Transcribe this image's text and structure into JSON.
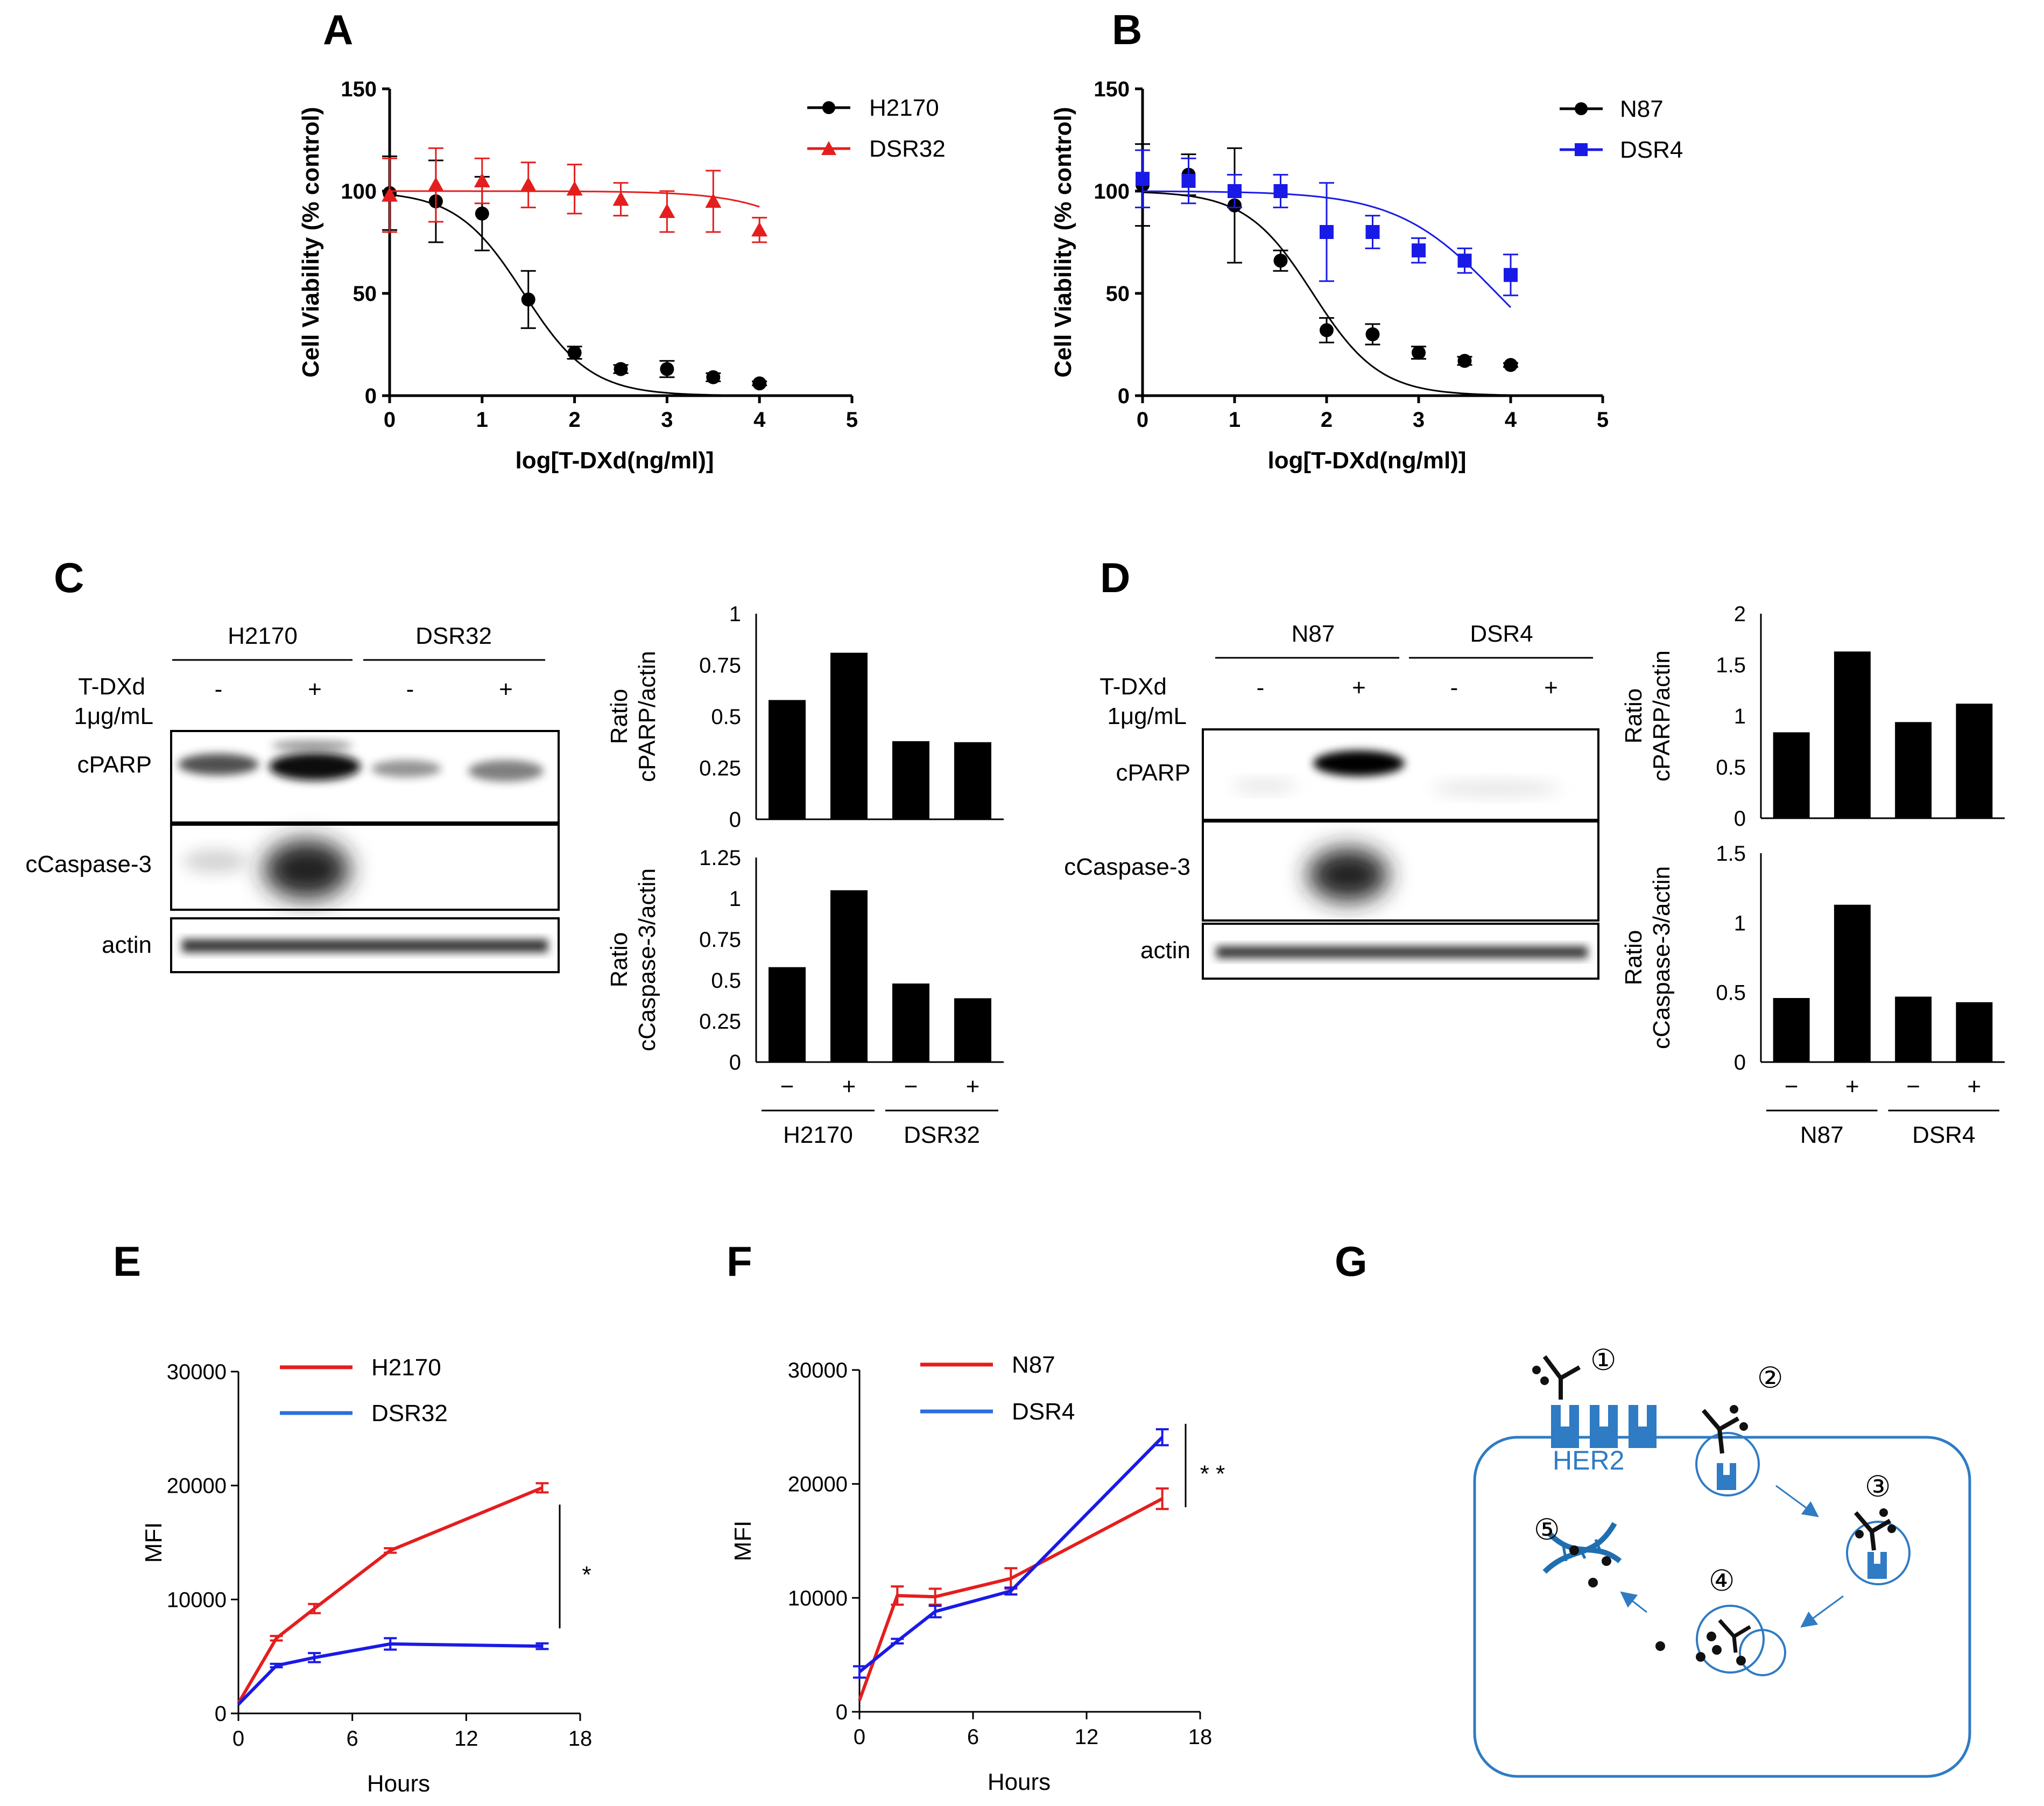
{
  "panel_labels": {
    "A": "A",
    "B": "B",
    "C": "C",
    "D": "D",
    "E": "E",
    "F": "F",
    "G": "G"
  },
  "colors": {
    "black": "#000000",
    "red": "#e41e1e",
    "blue": "#1a1ae6",
    "cell_blue": "#2f7bc4"
  },
  "chart_data": [
    {
      "id": "A",
      "type": "scatter",
      "xlabel": "log[T-DXd(ng/ml)]",
      "ylabel": "Cell Viability (% control)",
      "xlim": [
        0,
        5
      ],
      "ylim": [
        0,
        150
      ],
      "xticks": [
        "0",
        "1",
        "2",
        "3",
        "4",
        "5"
      ],
      "yticks": [
        "0",
        "50",
        "100",
        "150"
      ],
      "series": [
        {
          "name": "H2170",
          "color": "#000000",
          "marker": "circle",
          "x": [
            0,
            0.5,
            1,
            1.5,
            2,
            2.5,
            3,
            3.5,
            4
          ],
          "y": [
            99,
            95,
            89,
            47,
            21,
            13,
            13,
            9,
            6
          ],
          "err": [
            18,
            20,
            18,
            14,
            3,
            2,
            4,
            2,
            1
          ],
          "fit": {
            "top": 100,
            "bottom": 0,
            "logec50": 1.45,
            "hill": 1.2
          }
        },
        {
          "name": "DSR32",
          "color": "#e41e1e",
          "marker": "triangle",
          "x": [
            0,
            0.5,
            1,
            1.5,
            2,
            2.5,
            3,
            3.5,
            4
          ],
          "y": [
            98,
            103,
            105,
            103,
            101,
            96,
            90,
            95,
            81
          ],
          "err": [
            18,
            18,
            11,
            11,
            12,
            8,
            10,
            15,
            6
          ],
          "fit": {
            "top": 100,
            "bottom": 0,
            "logec50": 5.2,
            "hill": 0.9
          }
        }
      ]
    },
    {
      "id": "B",
      "type": "scatter",
      "xlabel": "log[T-DXd(ng/ml)]",
      "ylabel": "Cell Viability (% control)",
      "xlim": [
        0,
        5
      ],
      "ylim": [
        0,
        150
      ],
      "xticks": [
        "0",
        "1",
        "2",
        "3",
        "4",
        "5"
      ],
      "yticks": [
        "0",
        "50",
        "100",
        "150"
      ],
      "series": [
        {
          "name": "N87",
          "color": "#000000",
          "marker": "circle",
          "x": [
            0,
            0.5,
            1,
            1.5,
            2,
            2.5,
            3,
            3.5,
            4
          ],
          "y": [
            103,
            108,
            93,
            66,
            32,
            30,
            21,
            17,
            15
          ],
          "err": [
            20,
            10,
            28,
            5,
            6,
            5,
            3,
            2,
            1
          ],
          "fit": {
            "top": 100,
            "bottom": 0,
            "logec50": 1.85,
            "hill": 1.2
          }
        },
        {
          "name": "DSR4",
          "color": "#1a1ae6",
          "marker": "square",
          "x": [
            0,
            0.5,
            1,
            1.5,
            2,
            2.5,
            3,
            3.5,
            4
          ],
          "y": [
            106,
            105,
            100,
            100,
            80,
            80,
            71,
            66,
            59
          ],
          "err": [
            14,
            11,
            8,
            8,
            24,
            8,
            6,
            6,
            10
          ],
          "fit": {
            "top": 100,
            "bottom": 0,
            "logec50": 3.85,
            "hill": 0.8
          }
        }
      ]
    },
    {
      "id": "C-cparp",
      "type": "bar",
      "ylabel": "Ratio cPARP/actin",
      "ylabel_lines": [
        "Ratio",
        "cPARP/actin"
      ],
      "categories": [
        "−",
        "+",
        "−",
        "+"
      ],
      "values": [
        0.58,
        0.81,
        0.38,
        0.375
      ],
      "ylim": [
        0,
        1
      ],
      "yticks": [
        "0",
        "0.25",
        "0.5",
        "0.75",
        "1"
      ]
    },
    {
      "id": "C-ccasp",
      "type": "bar",
      "ylabel": "Ratio cCaspase-3/actin",
      "ylabel_lines": [
        "Ratio",
        "cCaspase-3/actin"
      ],
      "categories": [
        "−",
        "+",
        "−",
        "+"
      ],
      "values": [
        0.58,
        1.05,
        0.48,
        0.39
      ],
      "ylim": [
        0,
        1.25
      ],
      "yticks": [
        "0",
        "0.25",
        "0.5",
        "0.75",
        "1",
        "1.25"
      ],
      "groups": [
        "H2170",
        "DSR32"
      ]
    },
    {
      "id": "D-cparp",
      "type": "bar",
      "ylabel": "Ratio cPARP/actin",
      "ylabel_lines": [
        "Ratio",
        "cPARP/actin"
      ],
      "categories": [
        "−",
        "+",
        "−",
        "+"
      ],
      "values": [
        0.84,
        1.63,
        0.94,
        1.12
      ],
      "ylim": [
        0,
        2
      ],
      "yticks": [
        "0",
        "0.5",
        "1",
        "1.5",
        "2"
      ]
    },
    {
      "id": "D-ccasp",
      "type": "bar",
      "ylabel": "Ratio cCaspase-3/actin",
      "ylabel_lines": [
        "Ratio",
        "cCaspase-3/actin"
      ],
      "categories": [
        "−",
        "+",
        "−",
        "+"
      ],
      "values": [
        0.46,
        1.13,
        0.47,
        0.43
      ],
      "ylim": [
        0,
        1.5
      ],
      "yticks": [
        "0",
        "0.5",
        "1",
        "1.5"
      ],
      "groups": [
        "N87",
        "DSR4"
      ]
    },
    {
      "id": "E",
      "type": "line",
      "xlabel": "Hours",
      "ylabel": "MFI",
      "xlim": [
        0,
        18
      ],
      "ylim": [
        0,
        30000
      ],
      "xticks": [
        "0",
        "6",
        "12",
        "18"
      ],
      "yticks": [
        "0",
        "10000",
        "20000",
        "30000"
      ],
      "annotation": "*",
      "series": [
        {
          "name": "H2170",
          "color": "#e41e1e",
          "x": [
            0,
            2,
            4,
            8,
            16
          ],
          "y": [
            900,
            6600,
            9200,
            14300,
            19800
          ],
          "err": [
            0,
            200,
            400,
            200,
            400
          ]
        },
        {
          "name": "DSR32",
          "color": "#1a1ae6",
          "x": [
            0,
            2,
            4,
            8,
            16
          ],
          "y": [
            800,
            4200,
            4900,
            6100,
            5900
          ],
          "err": [
            0,
            150,
            400,
            500,
            250
          ]
        }
      ]
    },
    {
      "id": "F",
      "type": "line",
      "xlabel": "Hours",
      "ylabel": "MFI",
      "xlim": [
        0,
        18
      ],
      "ylim": [
        0,
        30000
      ],
      "xticks": [
        "0",
        "6",
        "12",
        "18"
      ],
      "yticks": [
        "0",
        "10000",
        "20000",
        "30000"
      ],
      "annotation": "* *",
      "series": [
        {
          "name": "N87",
          "color": "#e41e1e",
          "x": [
            0,
            2,
            4,
            8,
            16
          ],
          "y": [
            1000,
            10200,
            10100,
            11700,
            18700
          ],
          "err": [
            0,
            800,
            700,
            900,
            900
          ]
        },
        {
          "name": "DSR4",
          "color": "#1a1ae6",
          "x": [
            0,
            2,
            4,
            8,
            16
          ],
          "y": [
            3500,
            6200,
            8800,
            10600,
            24100
          ],
          "err": [
            500,
            200,
            500,
            300,
            700
          ]
        }
      ]
    }
  ],
  "blots": {
    "C": {
      "groups": [
        "H2170",
        "DSR32"
      ],
      "treatment_label_1": "T-DXd",
      "treatment_label_2": "1μg/mL",
      "signs": [
        "-",
        "+",
        "-",
        "+"
      ],
      "rows": [
        "cPARP",
        "cCaspase-3",
        "actin"
      ]
    },
    "D": {
      "groups": [
        "N87",
        "DSR4"
      ],
      "treatment_label_1": "T-DXd",
      "treatment_label_2": "1μg/mL",
      "signs": [
        "-",
        "+",
        "-",
        "+"
      ],
      "rows": [
        "cPARP",
        "cCaspase-3",
        "actin"
      ]
    }
  },
  "diagram_G": {
    "steps": [
      "①",
      "②",
      "③",
      "④",
      "⑤"
    ],
    "receptor_label": "HER2"
  }
}
